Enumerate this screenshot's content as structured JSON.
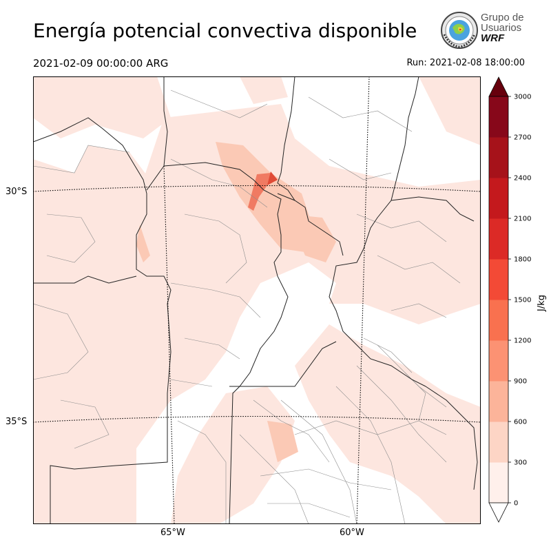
{
  "header": {
    "title": "Energía potencial convectiva disponible",
    "valid_time": "2021-02-09 00:00:00 ARG",
    "run": "Run: 2021-02-08 18:00:00"
  },
  "logo": {
    "line1": "Grupo de",
    "line2": "Usuarios",
    "line3": "WRF"
  },
  "map": {
    "lat_labels": [
      "30°S",
      "35°S"
    ],
    "lon_labels": [
      "65°W",
      "60°W"
    ],
    "background": "#ffffff",
    "fill_light": "#fde6df",
    "fill_medium": "#fbc9b5",
    "fill_strong": "#f07a62",
    "border_color": "#222222"
  },
  "colorbar": {
    "label": "J/kg",
    "ticks": [
      "0",
      "300",
      "600",
      "900",
      "1200",
      "1500",
      "1800",
      "2100",
      "2400",
      "2700",
      "3000"
    ],
    "colors": [
      "#fff0eb",
      "#fdd5c5",
      "#fcb49a",
      "#fc9273",
      "#f9714f",
      "#f34a36",
      "#dc2a26",
      "#c4191d",
      "#a6121a",
      "#87081a"
    ],
    "extend_over_color": "#67000d",
    "extend_under_color": "#ffffff"
  }
}
